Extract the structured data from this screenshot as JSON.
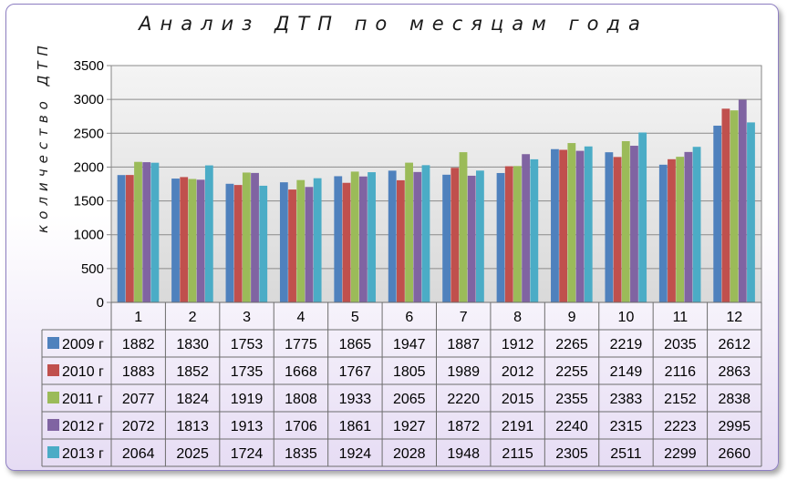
{
  "chart_data": {
    "type": "bar",
    "title": "Анализ ДТП по месяцам года",
    "xlabel": "",
    "ylabel": "количество ДТП",
    "ylim": [
      0,
      3500
    ],
    "yticks": [
      0,
      500,
      1000,
      1500,
      2000,
      2500,
      3000,
      3500
    ],
    "grid": true,
    "legend": "data-table",
    "categories": [
      "1",
      "2",
      "3",
      "4",
      "5",
      "6",
      "7",
      "8",
      "9",
      "10",
      "11",
      "12"
    ],
    "series": [
      {
        "name": "2009 г",
        "color": "#4f81bd",
        "values": [
          1882,
          1830,
          1753,
          1775,
          1865,
          1947,
          1887,
          1912,
          2265,
          2219,
          2035,
          2612
        ]
      },
      {
        "name": "2010 г",
        "color": "#c0504d",
        "values": [
          1883,
          1852,
          1735,
          1668,
          1767,
          1805,
          1989,
          2012,
          2255,
          2149,
          2116,
          2863
        ]
      },
      {
        "name": "2011 г",
        "color": "#9bbb59",
        "values": [
          2077,
          1824,
          1919,
          1808,
          1933,
          2065,
          2220,
          2015,
          2355,
          2383,
          2152,
          2838
        ]
      },
      {
        "name": "2012 г",
        "color": "#8064a2",
        "values": [
          2072,
          1813,
          1913,
          1706,
          1861,
          1927,
          1872,
          2191,
          2240,
          2315,
          2223,
          2995
        ]
      },
      {
        "name": "2013 г",
        "color": "#4bacc6",
        "values": [
          2064,
          2025,
          1724,
          1835,
          1924,
          2028,
          1948,
          2115,
          2305,
          2511,
          2299,
          2660
        ]
      }
    ]
  }
}
